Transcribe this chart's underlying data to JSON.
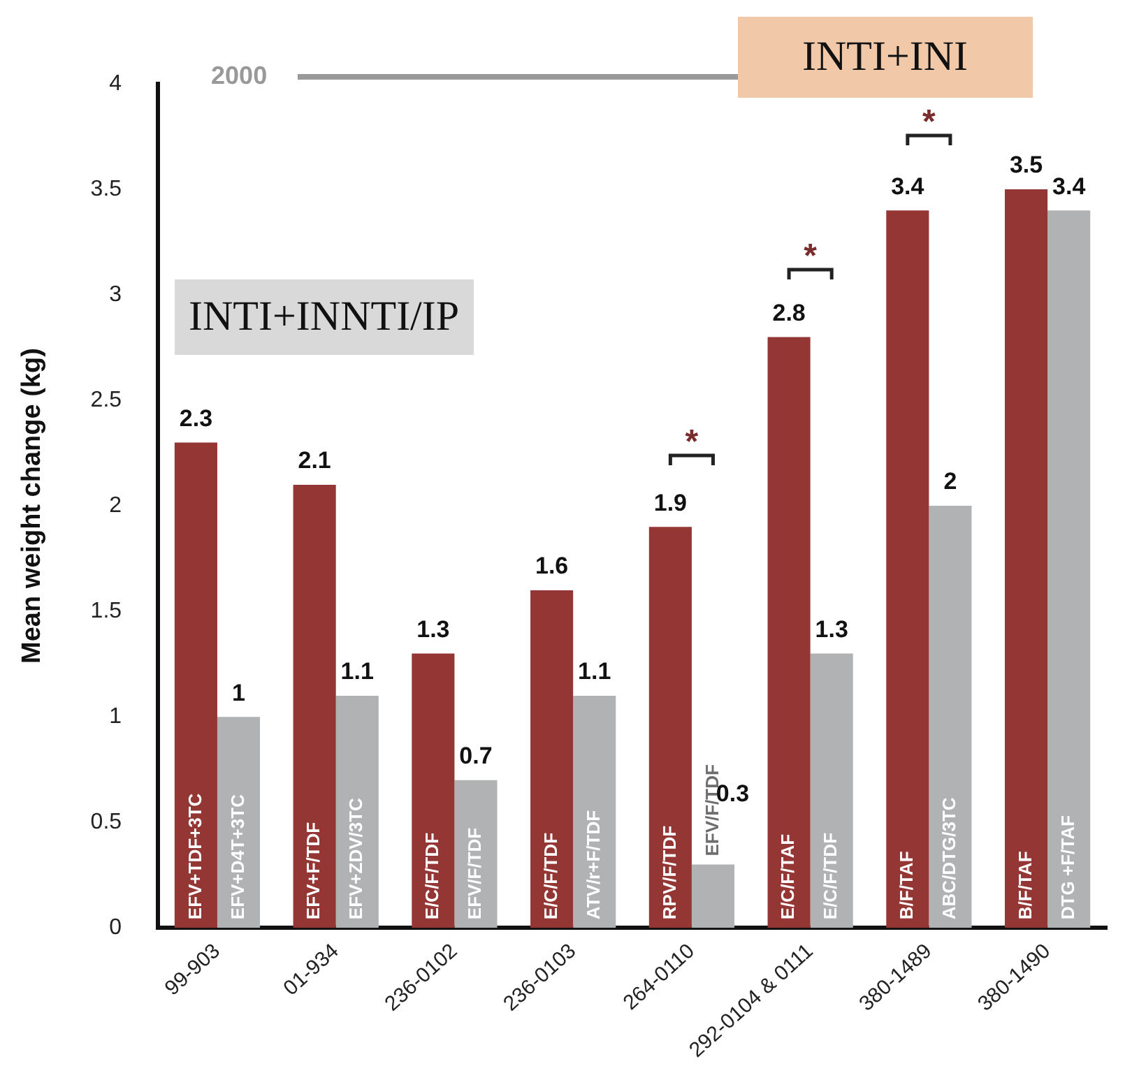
{
  "chart_data": {
    "type": "bar",
    "ylabel": "Mean weight change (kg)",
    "categories": [
      "99-903",
      "01-934",
      "236-0102",
      "236-0103",
      "264-0110",
      "292-0104 & 0111",
      "380-1489",
      "380-1490"
    ],
    "series": [
      {
        "color": "#943634",
        "values": [
          2.3,
          2.1,
          1.3,
          1.6,
          1.9,
          2.8,
          3.4,
          3.5
        ]
      },
      {
        "color": "#b1b2b4",
        "values": [
          1,
          1.1,
          0.7,
          1.1,
          0.3,
          1.3,
          2,
          3.4
        ]
      }
    ],
    "ylim": [
      0,
      4
    ],
    "yticks": [
      0,
      0.5,
      1,
      1.5,
      2,
      2.5,
      3,
      3.5,
      4
    ],
    "grid": false,
    "legend": false,
    "data_labels": true,
    "annotations": [
      "2000",
      "INTI+INNTI/IP",
      "INTI+INI",
      {
        "text": "EFV+TDF+3TC",
        "x": "99-903",
        "y": 0
      },
      {
        "text": "EFV+D4T+3TC",
        "x": "99-903",
        "y": 0
      },
      {
        "text": "EFV+F/TDF",
        "x": "01-934",
        "y": 0
      },
      {
        "text": "EFV+ZDV/3TC",
        "x": "01-934",
        "y": 0
      },
      {
        "text": "E/C/F/TDF",
        "x": "236-0102",
        "y": 0
      },
      {
        "text": "EFV/F/TDF",
        "x": "236-0102",
        "y": 0
      },
      {
        "text": "E/C/F/TDF",
        "x": "236-0103",
        "y": 0
      },
      {
        "text": "ATV/r+F/TDF",
        "x": "236-0103",
        "y": 0
      },
      {
        "text": "RPV/F/TDF",
        "x": "264-0110",
        "y": 0
      },
      {
        "text": "EFV/F/TDF",
        "x": "264-0110",
        "y": 0.3
      },
      {
        "text": "E/C/F/TAF",
        "x": "292-0104 & 0111",
        "y": 0
      },
      {
        "text": "E/C/F/TDF",
        "x": "292-0104 & 0111",
        "y": 0
      },
      {
        "text": "B/F/TAF",
        "x": "380-1489",
        "y": 0
      },
      {
        "text": "ABC/DTG/3TC",
        "x": "380-1489",
        "y": 0
      },
      {
        "text": "B/F/TAF",
        "x": "380-1490",
        "y": 0
      },
      {
        "text": "DTG +F/TAF",
        "x": "380-1490",
        "y": 0
      },
      "*",
      "*",
      "*"
    ]
  }
}
